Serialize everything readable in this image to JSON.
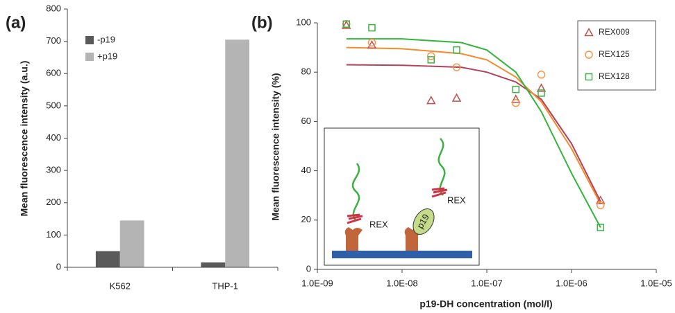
{
  "chart_data": [
    {
      "type": "bar",
      "panel_label": "(a)",
      "y_label": "Mean fluorescence intensity (a.u.)",
      "categories": [
        "K562",
        "THP-1"
      ],
      "series": [
        {
          "name": "-p19",
          "color": "#5a5a5a",
          "values": [
            50,
            15
          ]
        },
        {
          "name": "+p19",
          "color": "#b4b4b4",
          "values": [
            145,
            705
          ]
        }
      ],
      "ylim": [
        0,
        800
      ],
      "yticks": [
        0,
        100,
        200,
        300,
        400,
        500,
        600,
        700,
        800
      ],
      "legend": "upper left"
    },
    {
      "type": "scatter",
      "panel_label": "(b)",
      "x_label": "p19-DH concentration (mol/l)",
      "y_label": "Mean fluorescence intensity (%)",
      "x_scale": "log",
      "xlim": [
        1e-09,
        1e-05
      ],
      "xticks": [
        {
          "value": 1e-09,
          "label": "1.0E-09"
        },
        {
          "value": 1e-08,
          "label": "1.0E-08"
        },
        {
          "value": 1e-07,
          "label": "1.0E-07"
        },
        {
          "value": 1e-06,
          "label": "1.0E-06"
        },
        {
          "value": 1e-05,
          "label": "1.0E-05"
        }
      ],
      "ylim": [
        0,
        100
      ],
      "yticks": [
        0,
        20,
        40,
        60,
        80,
        100
      ],
      "x": [
        2.2e-09,
        4.4e-09,
        2.2e-08,
        4.4e-08,
        2.2e-07,
        4.4e-07,
        2.2e-06
      ],
      "series": [
        {
          "name": "REX009",
          "color": "#c0504d",
          "marker": "triangle",
          "values": [
            99,
            91,
            68.5,
            69.5,
            69,
            73.5,
            28
          ]
        },
        {
          "name": "REX125",
          "color": "#f79646",
          "marker": "circle",
          "values": [
            99.5,
            92,
            86.5,
            82,
            67.5,
            79,
            26
          ]
        },
        {
          "name": "REX128",
          "color": "#3cb043",
          "marker": "square",
          "values": [
            99.5,
            98,
            85,
            89,
            73,
            71.5,
            17
          ]
        }
      ],
      "fits": [
        {
          "color": "#b5415a",
          "x": [
            2.2e-09,
            1e-08,
            5e-08,
            1e-07,
            2.2e-07,
            4.4e-07,
            1e-06,
            2.2e-06
          ],
          "values": [
            83,
            82.8,
            82,
            80,
            76,
            69,
            51,
            27.5
          ]
        },
        {
          "color": "#f58a2e",
          "x": [
            2.2e-09,
            1e-08,
            5e-08,
            1e-07,
            2.2e-07,
            4.4e-07,
            1e-06,
            2.2e-06
          ],
          "values": [
            90,
            89.5,
            87.5,
            85,
            78,
            68,
            49,
            26.5
          ]
        },
        {
          "color": "#2fb63a",
          "x": [
            2.2e-09,
            1e-08,
            5e-08,
            1e-07,
            2.2e-07,
            4.4e-07,
            1e-06,
            2.2e-06
          ],
          "values": [
            93.5,
            93.5,
            92,
            89,
            80,
            64,
            39,
            17
          ]
        }
      ],
      "legend": "upper right",
      "inset": {
        "labels": [
          "REX",
          "REX",
          "p19"
        ]
      }
    }
  ]
}
